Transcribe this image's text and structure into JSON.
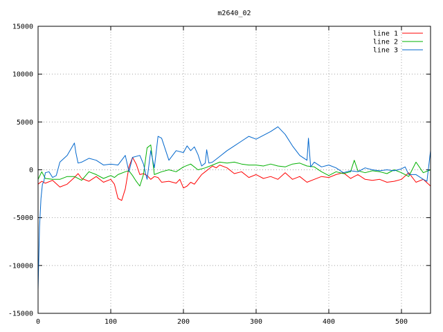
{
  "chart_data": {
    "type": "line",
    "title": "m2640_02",
    "xlabel": "",
    "ylabel": "",
    "xlim": [
      0,
      540
    ],
    "ylim": [
      -15000,
      15000
    ],
    "x_ticks": [
      0,
      100,
      200,
      300,
      400,
      500
    ],
    "y_ticks": [
      -15000,
      -10000,
      -5000,
      0,
      5000,
      10000,
      15000
    ],
    "grid": true,
    "legend_position": "top-right",
    "series": [
      {
        "name": "line 1",
        "color": "#ff0000",
        "x": [
          0,
          5,
          10,
          20,
          30,
          40,
          50,
          55,
          60,
          70,
          80,
          90,
          100,
          105,
          110,
          115,
          120,
          125,
          130,
          135,
          140,
          145,
          150,
          155,
          160,
          165,
          170,
          180,
          190,
          195,
          200,
          205,
          210,
          215,
          220,
          225,
          230,
          235,
          240,
          245,
          250,
          260,
          270,
          280,
          290,
          300,
          310,
          320,
          330,
          340,
          350,
          360,
          370,
          380,
          390,
          400,
          410,
          420,
          430,
          440,
          450,
          460,
          470,
          480,
          490,
          500,
          510,
          520,
          530,
          540
        ],
        "y": [
          -1500,
          -1200,
          -1400,
          -1100,
          -1800,
          -1500,
          -800,
          -400,
          -900,
          -1200,
          -700,
          -1300,
          -1000,
          -1500,
          -3000,
          -3200,
          -2000,
          300,
          1300,
          600,
          -500,
          -400,
          -600,
          -1000,
          -700,
          -800,
          -1300,
          -1200,
          -1400,
          -1000,
          -1900,
          -1700,
          -1300,
          -1500,
          -1000,
          -500,
          -200,
          100,
          400,
          200,
          500,
          200,
          -400,
          -200,
          -800,
          -500,
          -900,
          -700,
          -1000,
          -300,
          -1000,
          -700,
          -1300,
          -1000,
          -700,
          -800,
          -500,
          -300,
          -900,
          -500,
          -1000,
          -1100,
          -1000,
          -1300,
          -1200,
          -1000,
          -300,
          -1300,
          -1000,
          -1700
        ]
      },
      {
        "name": "line 2",
        "color": "#00b000",
        "x": [
          0,
          5,
          10,
          20,
          30,
          40,
          50,
          60,
          70,
          80,
          90,
          100,
          105,
          110,
          120,
          125,
          130,
          135,
          140,
          145,
          150,
          155,
          160,
          170,
          180,
          190,
          200,
          210,
          220,
          230,
          240,
          250,
          260,
          270,
          280,
          290,
          300,
          310,
          320,
          330,
          340,
          350,
          360,
          370,
          380,
          390,
          400,
          410,
          420,
          430,
          435,
          440,
          450,
          460,
          470,
          480,
          490,
          500,
          510,
          520,
          530,
          540
        ],
        "y": [
          -1000,
          -200,
          -900,
          -1000,
          -1000,
          -700,
          -700,
          -1100,
          -200,
          -500,
          -900,
          -600,
          -800,
          -500,
          -200,
          -100,
          -600,
          -1200,
          -1700,
          -500,
          2300,
          2600,
          -500,
          -200,
          0,
          -200,
          300,
          600,
          0,
          200,
          500,
          800,
          700,
          800,
          600,
          500,
          500,
          400,
          600,
          400,
          300,
          600,
          700,
          400,
          300,
          -200,
          -600,
          -200,
          -400,
          -200,
          1000,
          -100,
          -300,
          -100,
          -200,
          -400,
          0,
          -300,
          -700,
          800,
          -300,
          0
        ]
      },
      {
        "name": "line 3",
        "color": "#0066cc",
        "x": [
          0,
          2,
          4,
          6,
          8,
          10,
          15,
          20,
          25,
          30,
          40,
          50,
          52,
          55,
          60,
          70,
          80,
          90,
          100,
          110,
          120,
          125,
          130,
          140,
          145,
          148,
          150,
          155,
          160,
          165,
          170,
          180,
          190,
          200,
          205,
          210,
          215,
          220,
          225,
          230,
          232,
          235,
          240,
          250,
          260,
          270,
          280,
          290,
          300,
          310,
          320,
          330,
          340,
          350,
          360,
          370,
          372,
          375,
          380,
          390,
          400,
          410,
          420,
          430,
          440,
          450,
          460,
          470,
          480,
          490,
          500,
          505,
          510,
          520,
          530,
          535,
          540
        ],
        "y": [
          -12500,
          -6000,
          -3000,
          -1500,
          -1200,
          -300,
          -200,
          -800,
          -600,
          800,
          1500,
          2800,
          1800,
          700,
          800,
          1200,
          1000,
          500,
          600,
          500,
          1500,
          -200,
          1300,
          1500,
          600,
          -400,
          -1000,
          2000,
          200,
          3500,
          3300,
          1000,
          2000,
          1800,
          2500,
          2000,
          2400,
          1600,
          400,
          700,
          2100,
          700,
          800,
          1400,
          2000,
          2500,
          3000,
          3500,
          3200,
          3600,
          4000,
          4500,
          3700,
          2500,
          1500,
          1000,
          3300,
          300,
          800,
          300,
          500,
          200,
          -300,
          -100,
          -200,
          200,
          0,
          -100,
          0,
          -100,
          100,
          300,
          -500,
          -500,
          -1000,
          -1200,
          2000
        ]
      }
    ]
  }
}
